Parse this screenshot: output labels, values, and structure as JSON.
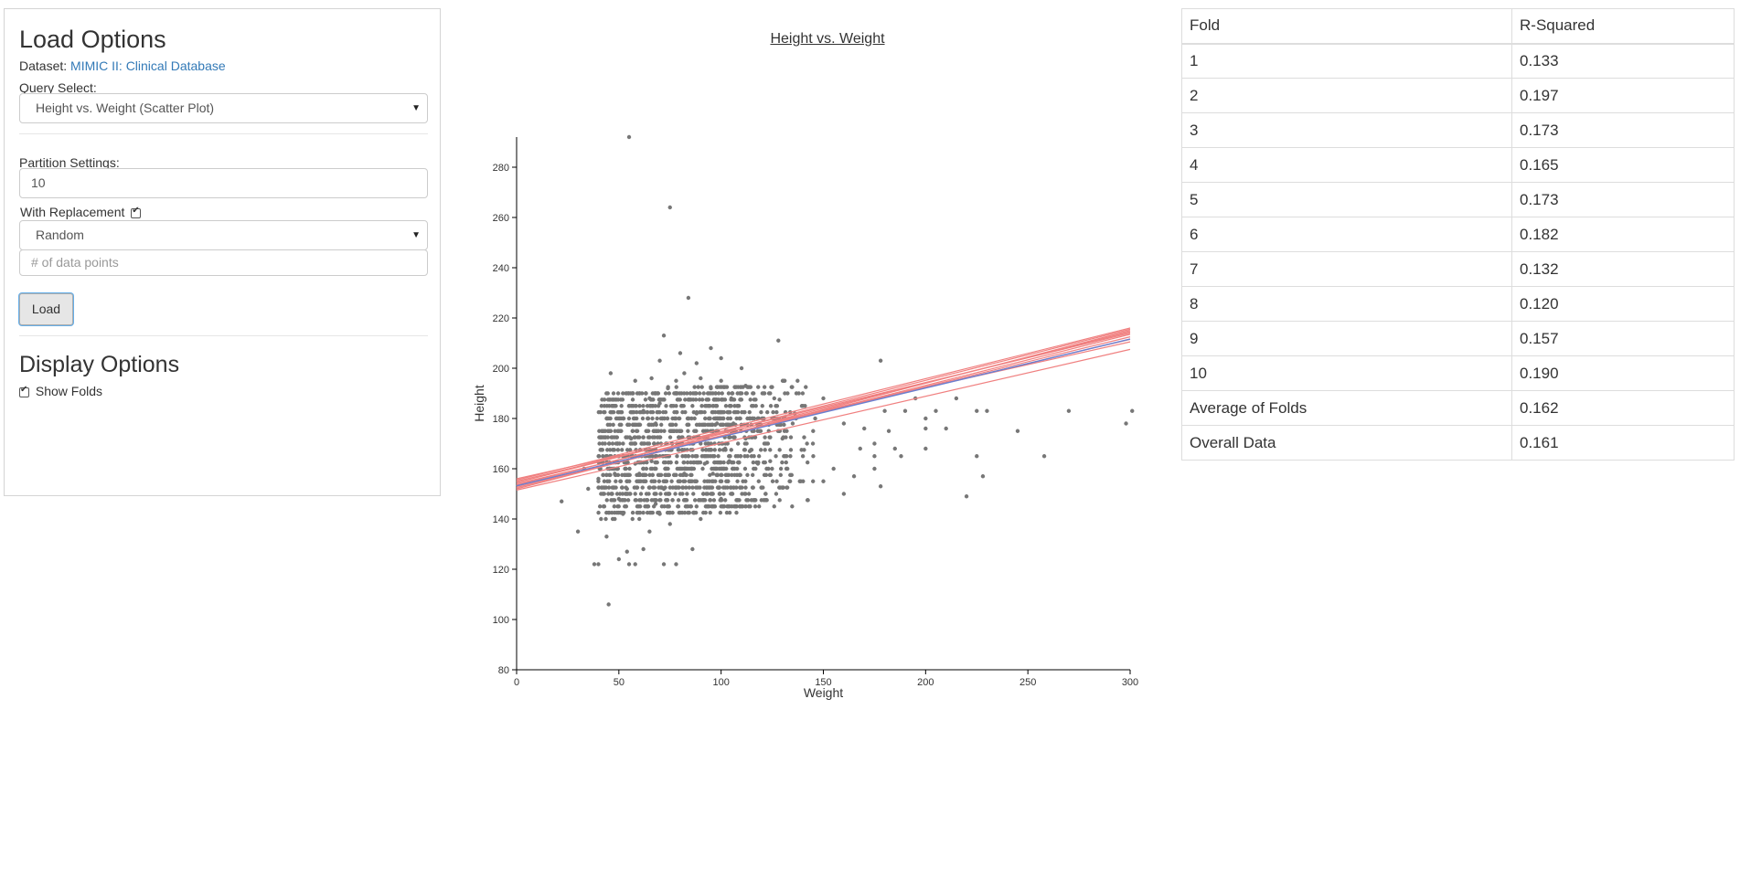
{
  "load_options": {
    "title": "Load Options",
    "dataset_label": "Dataset:",
    "dataset_link": "MIMIC II: Clinical Database",
    "query_label": "Query Select:",
    "query_value": "Height vs. Weight (Scatter Plot)",
    "partition_label": "Partition Settings:",
    "partition_value": "10",
    "replacement_label": "With Replacement",
    "replacement_checked": true,
    "sampling_value": "Random",
    "points_placeholder": "# of data points",
    "load_button": "Load"
  },
  "display_options": {
    "title": "Display Options",
    "show_folds_label": "Show Folds",
    "show_folds_checked": true
  },
  "colors": {
    "points": "#777777",
    "fold_lines": "#f08080",
    "overall_line": "#6a7fd0",
    "link": "#337ab7"
  },
  "chart_data": {
    "type": "scatter",
    "title": "Height vs. Weight",
    "xlabel": "Weight",
    "ylabel": "Height",
    "xlim": [
      0,
      300
    ],
    "ylim": [
      80,
      292
    ],
    "xticks": [
      0,
      50,
      100,
      150,
      200,
      250,
      300
    ],
    "yticks": [
      80,
      100,
      120,
      140,
      160,
      180,
      200,
      220,
      240,
      260,
      280
    ],
    "grid": false,
    "points": [
      [
        55,
        292
      ],
      [
        75,
        264
      ],
      [
        84,
        228
      ],
      [
        72,
        213
      ],
      [
        80,
        206
      ],
      [
        95,
        208
      ],
      [
        128,
        211
      ],
      [
        46,
        198
      ],
      [
        100,
        204
      ],
      [
        110,
        200
      ],
      [
        178,
        203
      ],
      [
        88,
        202
      ],
      [
        70,
        203
      ],
      [
        45,
        106
      ],
      [
        38,
        122
      ],
      [
        40,
        122
      ],
      [
        55,
        122
      ],
      [
        58,
        122
      ],
      [
        72,
        122
      ],
      [
        78,
        122
      ],
      [
        50,
        124
      ],
      [
        54,
        127
      ],
      [
        62,
        128
      ],
      [
        86,
        128
      ],
      [
        44,
        133
      ],
      [
        30,
        135
      ],
      [
        48,
        140
      ],
      [
        22,
        147
      ],
      [
        35,
        152
      ],
      [
        40,
        156
      ],
      [
        33,
        160
      ],
      [
        160,
        150
      ],
      [
        150,
        155
      ],
      [
        165,
        157
      ],
      [
        178,
        153
      ],
      [
        220,
        149
      ],
      [
        228,
        157
      ],
      [
        225,
        165
      ],
      [
        258,
        165
      ],
      [
        245,
        175
      ],
      [
        270,
        183
      ],
      [
        225,
        183
      ],
      [
        230,
        183
      ],
      [
        298,
        178
      ],
      [
        301,
        183
      ],
      [
        182,
        175
      ],
      [
        200,
        176
      ],
      [
        210,
        176
      ],
      [
        190,
        183
      ],
      [
        205,
        183
      ],
      [
        215,
        188
      ],
      [
        195,
        188
      ],
      [
        175,
        165
      ],
      [
        185,
        168
      ],
      [
        200,
        168
      ],
      [
        188,
        165
      ],
      [
        168,
        168
      ],
      [
        175,
        170
      ],
      [
        200,
        180
      ],
      [
        160,
        178
      ],
      [
        170,
        176
      ],
      [
        180,
        183
      ],
      [
        175,
        160
      ],
      [
        155,
        160
      ],
      [
        140,
        165
      ],
      [
        130,
        172
      ],
      [
        150,
        188
      ],
      [
        140,
        185
      ],
      [
        120,
        180
      ],
      [
        60,
        140
      ],
      [
        65,
        135
      ],
      [
        70,
        142
      ],
      [
        95,
        150
      ],
      [
        100,
        148
      ],
      [
        110,
        145
      ],
      [
        85,
        145
      ],
      [
        90,
        140
      ],
      [
        75,
        138
      ],
      [
        68,
        146
      ],
      [
        58,
        150
      ],
      [
        52,
        142
      ],
      [
        48,
        158
      ],
      [
        44,
        165
      ],
      [
        42,
        170
      ],
      [
        50,
        180
      ],
      [
        55,
        185
      ],
      [
        60,
        190
      ],
      [
        65,
        188
      ],
      [
        78,
        195
      ],
      [
        85,
        190
      ],
      [
        95,
        192
      ],
      [
        105,
        188
      ],
      [
        115,
        185
      ],
      [
        125,
        180
      ],
      [
        135,
        178
      ],
      [
        145,
        175
      ],
      [
        100,
        160
      ],
      [
        90,
        170
      ],
      [
        80,
        175
      ],
      [
        70,
        165
      ],
      [
        62,
        170
      ],
      [
        58,
        162
      ],
      [
        66,
        155
      ],
      [
        74,
        160
      ],
      [
        82,
        158
      ],
      [
        92,
        162
      ],
      [
        102,
        168
      ],
      [
        112,
        172
      ],
      [
        122,
        170
      ],
      [
        132,
        165
      ],
      [
        142,
        170
      ],
      [
        118,
        162
      ],
      [
        108,
        155
      ],
      [
        98,
        178
      ],
      [
        88,
        182
      ],
      [
        78,
        185
      ],
      [
        68,
        178
      ],
      [
        56,
        172
      ],
      [
        46,
        175
      ],
      [
        52,
        165
      ],
      [
        64,
        180
      ],
      [
        76,
        170
      ],
      [
        86,
        165
      ],
      [
        96,
        185
      ],
      [
        106,
        178
      ],
      [
        116,
        175
      ],
      [
        126,
        188
      ],
      [
        136,
        182
      ],
      [
        146,
        180
      ],
      [
        72,
        152
      ],
      [
        80,
        150
      ],
      [
        88,
        155
      ],
      [
        96,
        158
      ],
      [
        104,
        163
      ],
      [
        114,
        167
      ],
      [
        124,
        163
      ],
      [
        60,
        158
      ],
      [
        54,
        152
      ],
      [
        50,
        148
      ],
      [
        66,
        163
      ],
      [
        90,
        196
      ],
      [
        74,
        192
      ],
      [
        82,
        198
      ],
      [
        100,
        195
      ],
      [
        112,
        193
      ],
      [
        124,
        190
      ],
      [
        66,
        196
      ],
      [
        58,
        195
      ],
      [
        52,
        190
      ],
      [
        48,
        185
      ],
      [
        44,
        180
      ],
      [
        62,
        183
      ],
      [
        70,
        186
      ]
    ],
    "series": [
      {
        "label_shown": false,
        "fold": 1,
        "y_at_0": 155.5,
        "y_at_300": 216.0
      },
      {
        "label_shown": false,
        "fold": 2,
        "y_at_0": 153.5,
        "y_at_300": 214.5
      },
      {
        "label_shown": false,
        "fold": 3,
        "y_at_0": 154.5,
        "y_at_300": 215.5
      },
      {
        "label_shown": false,
        "fold": 4,
        "y_at_0": 152.5,
        "y_at_300": 213.5
      },
      {
        "label_shown": false,
        "fold": 5,
        "y_at_0": 155.0,
        "y_at_300": 214.0
      },
      {
        "label_shown": false,
        "fold": 6,
        "y_at_0": 156.0,
        "y_at_300": 210.5
      },
      {
        "label_shown": false,
        "fold": 7,
        "y_at_0": 151.5,
        "y_at_300": 207.5
      },
      {
        "label_shown": false,
        "fold": 8,
        "y_at_0": 153.0,
        "y_at_300": 212.5
      },
      {
        "label_shown": false,
        "fold": 9,
        "y_at_0": 154.0,
        "y_at_300": 211.5
      },
      {
        "label_shown": false,
        "fold": 10,
        "y_at_0": 152.0,
        "y_at_300": 215.0
      }
    ],
    "overall_line": {
      "y_at_0": 153.2,
      "y_at_300": 211.6
    }
  },
  "table": {
    "headers": [
      "Fold",
      "R-Squared"
    ],
    "rows": [
      [
        "1",
        "0.133"
      ],
      [
        "2",
        "0.197"
      ],
      [
        "3",
        "0.173"
      ],
      [
        "4",
        "0.165"
      ],
      [
        "5",
        "0.173"
      ],
      [
        "6",
        "0.182"
      ],
      [
        "7",
        "0.132"
      ],
      [
        "8",
        "0.120"
      ],
      [
        "9",
        "0.157"
      ],
      [
        "10",
        "0.190"
      ],
      [
        "Average of Folds",
        "0.162"
      ],
      [
        "Overall Data",
        "0.161"
      ]
    ]
  }
}
